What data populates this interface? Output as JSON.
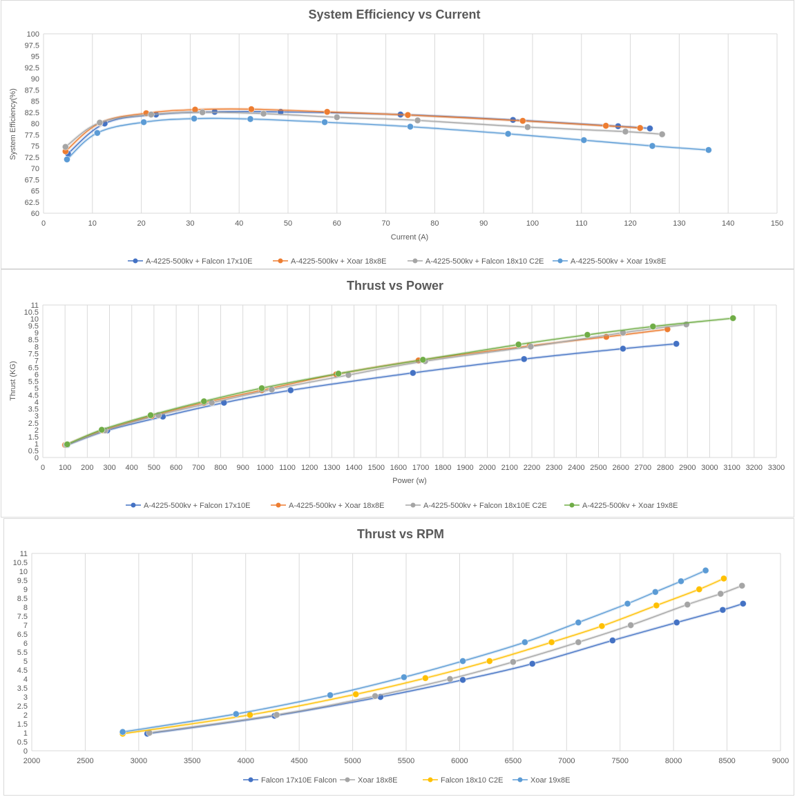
{
  "chart_data": [
    {
      "type": "scatter",
      "title": "System Efficiency vs Current",
      "xlabel": "Current (A)",
      "ylabel": "System Efficiency(%)",
      "xlim": [
        0,
        150
      ],
      "ylim": [
        60,
        100
      ],
      "xticks": [
        0,
        10,
        20,
        30,
        40,
        50,
        60,
        70,
        80,
        90,
        100,
        110,
        120,
        130,
        140,
        150
      ],
      "yticks": [
        60,
        62.5,
        65,
        67.5,
        70,
        72.5,
        75,
        77.5,
        80,
        82.5,
        85,
        87.5,
        90,
        92.5,
        95,
        97.5,
        100
      ],
      "grid": "vertical",
      "smooth": true,
      "legend_position": "bottom",
      "series": [
        {
          "name": "A-4225-500kv + Falcon 17x10E",
          "color": "#4472C4",
          "x": [
            5,
            12.5,
            23,
            35,
            48.5,
            73,
            96,
            117.5,
            124
          ],
          "y": [
            73.3,
            80,
            82,
            82.6,
            82.6,
            82,
            80.8,
            79.4,
            78.9
          ]
        },
        {
          "name": "A-4225-500kv + Xoar 18x8E",
          "color": "#ED7D31",
          "x": [
            4.5,
            11.5,
            21,
            31,
            42.5,
            58,
            74.5,
            98,
            115,
            122
          ],
          "y": [
            73.8,
            80.1,
            82.3,
            83.1,
            83.2,
            82.6,
            81.9,
            80.6,
            79.5,
            79
          ]
        },
        {
          "name": "A-4225-500kv + Falcon 18x10 C2E",
          "color": "#A5A5A5",
          "x": [
            4.5,
            11.5,
            22,
            32.5,
            45,
            60,
            76.5,
            99,
            119,
            126.5
          ],
          "y": [
            74.8,
            80.2,
            82,
            82.5,
            82.2,
            81.4,
            80.7,
            79.2,
            78.2,
            77.6
          ]
        },
        {
          "name": "A-4225-500kv + Xoar 19x8E",
          "color": "#5B9BD5",
          "x": [
            4.8,
            11,
            20.5,
            30.8,
            42.3,
            57.5,
            75,
            95,
            110.5,
            124.5,
            136
          ],
          "y": [
            72,
            77.9,
            80.3,
            81.1,
            81,
            80.3,
            79.3,
            77.7,
            76.3,
            75,
            74.1
          ]
        }
      ]
    },
    {
      "type": "scatter",
      "title": "Thrust  vs Power",
      "xlabel": "Power (w)",
      "ylabel": "Thrust (KG)",
      "xlim": [
        0,
        3300
      ],
      "ylim": [
        0,
        11
      ],
      "xticks": [
        0,
        100,
        200,
        300,
        400,
        500,
        600,
        700,
        800,
        900,
        1000,
        1100,
        1200,
        1300,
        1400,
        1500,
        1600,
        1700,
        1800,
        1900,
        2000,
        2100,
        2200,
        2300,
        2400,
        2500,
        2600,
        2700,
        2800,
        2900,
        3000,
        3100,
        3200,
        3300
      ],
      "yticks": [
        0,
        0.5,
        1,
        1.5,
        2,
        2.5,
        3,
        3.5,
        4,
        4.5,
        5,
        5.5,
        6,
        6.5,
        7,
        7.5,
        8,
        8.5,
        9,
        9.5,
        10,
        10.5,
        11
      ],
      "grid": "vertical",
      "smooth": true,
      "legend_position": "bottom",
      "series": [
        {
          "name": "A-4225-500kv + Falcon 17x10E",
          "color": "#4472C4",
          "x": [
            110,
            290,
            540,
            815,
            1115,
            1665,
            2165,
            2610,
            2850
          ],
          "y": [
            0.9,
            1.95,
            2.95,
            3.95,
            4.85,
            6.1,
            7.1,
            7.85,
            8.2
          ]
        },
        {
          "name": "A-4225-500kv + Xoar 18x8E",
          "color": "#ED7D31",
          "x": [
            100,
            270,
            490,
            725,
            985,
            1320,
            1690,
            2190,
            2535,
            2810
          ],
          "y": [
            0.9,
            1.95,
            3,
            3.95,
            4.85,
            6,
            7,
            8.05,
            8.7,
            9.25
          ]
        },
        {
          "name": "A-4225-500kv + Falcon 18x10E C2E",
          "color": "#A5A5A5",
          "x": [
            105,
            280,
            520,
            760,
            1030,
            1375,
            1720,
            2195,
            2610,
            2895
          ],
          "y": [
            0.9,
            1.95,
            3.05,
            3.95,
            4.9,
            5.95,
            6.95,
            8,
            9,
            9.6
          ]
        },
        {
          "name": "A-4225-500kv + Xoar 19x8E",
          "color": "#70AD47",
          "x": [
            110,
            265,
            485,
            725,
            985,
            1330,
            1710,
            2140,
            2450,
            2745,
            3105
          ],
          "y": [
            0.95,
            2,
            3.05,
            4.05,
            5,
            6.05,
            7.05,
            8.15,
            8.85,
            9.45,
            10.05
          ]
        }
      ]
    },
    {
      "type": "scatter",
      "title": "Thrust  vs RPM",
      "xlabel": "",
      "ylabel": "",
      "xlim": [
        2000,
        9000
      ],
      "ylim": [
        0,
        11
      ],
      "xticks": [
        2000,
        2500,
        3000,
        3500,
        4000,
        4500,
        5000,
        5500,
        6000,
        6500,
        7000,
        7500,
        8000,
        8500,
        9000
      ],
      "yticks": [
        0,
        0.5,
        1,
        1.5,
        2,
        2.5,
        3,
        3.5,
        4,
        4.5,
        5,
        5.5,
        6,
        6.5,
        7,
        7.5,
        8,
        8.5,
        9,
        9.5,
        10,
        10.5,
        11
      ],
      "grid": "vertical",
      "smooth": true,
      "legend_position": "bottom",
      "series": [
        {
          "name": "Falcon 17x10E Falcon",
          "color": "#4472C4",
          "x": [
            3080,
            4270,
            5260,
            6030,
            6680,
            7430,
            8030,
            8460,
            8650
          ],
          "y": [
            0.95,
            1.95,
            3,
            3.95,
            4.85,
            6.15,
            7.15,
            7.85,
            8.2
          ]
        },
        {
          "name": "Xoar 18x8E",
          "color": "#A5A5A5",
          "x": [
            3100,
            4290,
            5210,
            5910,
            6500,
            7110,
            7600,
            8130,
            8440,
            8640
          ],
          "y": [
            1,
            2,
            3.05,
            4,
            4.95,
            6.05,
            7,
            8.15,
            8.75,
            9.2
          ]
        },
        {
          "name": "Falcon 18x10 C2E",
          "color": "#FFC000",
          "x": [
            2850,
            4040,
            5030,
            5680,
            6280,
            6860,
            7330,
            7840,
            8240,
            8470
          ],
          "y": [
            0.95,
            2,
            3.15,
            4.05,
            5,
            6.05,
            6.95,
            8.1,
            9,
            9.6
          ]
        },
        {
          "name": "Xoar 19x8E",
          "color": "#5B9BD5",
          "x": [
            2850,
            3910,
            4790,
            5480,
            6030,
            6610,
            7110,
            7570,
            7830,
            8070,
            8300
          ],
          "y": [
            1.05,
            2.05,
            3.1,
            4.1,
            5,
            6.05,
            7.15,
            8.2,
            8.85,
            9.45,
            10.05
          ]
        }
      ]
    }
  ]
}
